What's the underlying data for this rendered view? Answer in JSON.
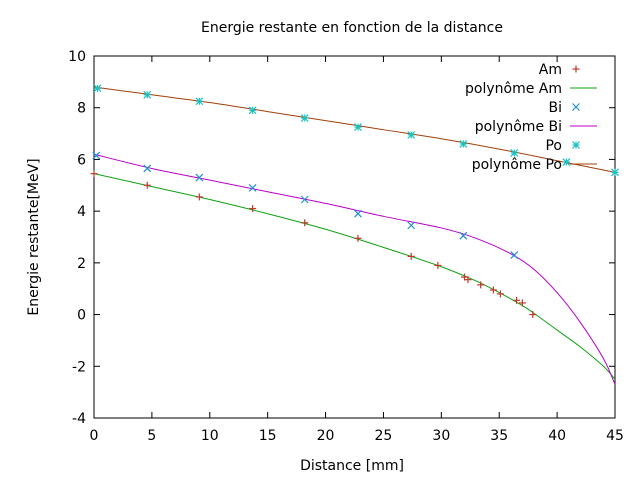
{
  "chart_data": {
    "type": "scatter",
    "title": "Energie restante en fonction de la distance",
    "xlabel": "Distance [mm]",
    "ylabel": "Energie restante[MeV]",
    "xlim": [
      0,
      45
    ],
    "ylim": [
      -4,
      10
    ],
    "xticks": [
      "0",
      "5",
      "10",
      "15",
      "20",
      "25",
      "30",
      "35",
      "40",
      "45"
    ],
    "yticks": [
      "-4",
      "-2",
      "0",
      "2",
      "4",
      "6",
      "8",
      "10"
    ],
    "grid": false,
    "legend_position": "top-right",
    "series": [
      {
        "name": "Am",
        "kind": "points",
        "marker": "plus",
        "color": "#c0392b",
        "points": [
          [
            0,
            5.45
          ],
          [
            4.6,
            5.0
          ],
          [
            9.1,
            4.55
          ],
          [
            13.7,
            4.1
          ],
          [
            18.2,
            3.55
          ],
          [
            22.8,
            2.95
          ],
          [
            27.4,
            2.25
          ],
          [
            29.7,
            1.9
          ],
          [
            32.0,
            1.45
          ],
          [
            32.3,
            1.35
          ],
          [
            33.4,
            1.15
          ],
          [
            34.5,
            0.95
          ],
          [
            35.1,
            0.8
          ],
          [
            36.5,
            0.55
          ],
          [
            37.0,
            0.45
          ],
          [
            37.9,
            0.0
          ]
        ]
      },
      {
        "name": "polynôme Am",
        "kind": "line",
        "color": "#11a011",
        "points": [
          [
            0,
            5.45
          ],
          [
            5,
            4.95
          ],
          [
            10,
            4.45
          ],
          [
            15,
            3.9
          ],
          [
            20,
            3.3
          ],
          [
            25,
            2.6
          ],
          [
            30,
            1.85
          ],
          [
            33,
            1.3
          ],
          [
            35,
            0.85
          ],
          [
            37,
            0.35
          ],
          [
            38,
            0.05
          ],
          [
            40,
            -0.6
          ],
          [
            42,
            -1.25
          ],
          [
            44,
            -2.0
          ],
          [
            45,
            -2.5
          ]
        ]
      },
      {
        "name": "Bi",
        "kind": "points",
        "marker": "cross",
        "color": "#1f8fd6",
        "points": [
          [
            0.2,
            6.15
          ],
          [
            4.6,
            5.65
          ],
          [
            9.1,
            5.3
          ],
          [
            13.7,
            4.9
          ],
          [
            18.2,
            4.45
          ],
          [
            22.8,
            3.9
          ],
          [
            27.4,
            3.45
          ],
          [
            31.9,
            3.05
          ],
          [
            36.3,
            2.3
          ]
        ]
      },
      {
        "name": "polynôme Bi",
        "kind": "line",
        "color": "#b800c8",
        "points": [
          [
            0,
            6.2
          ],
          [
            5,
            5.65
          ],
          [
            10,
            5.2
          ],
          [
            15,
            4.75
          ],
          [
            20,
            4.3
          ],
          [
            25,
            3.8
          ],
          [
            30,
            3.35
          ],
          [
            33,
            2.95
          ],
          [
            36,
            2.35
          ],
          [
            38,
            1.75
          ],
          [
            40,
            0.85
          ],
          [
            42,
            -0.3
          ],
          [
            44,
            -1.7
          ],
          [
            45,
            -2.7
          ]
        ]
      },
      {
        "name": "Po",
        "kind": "points",
        "marker": "star",
        "color": "#19c1c1",
        "points": [
          [
            0.3,
            8.75
          ],
          [
            4.6,
            8.5
          ],
          [
            9.1,
            8.25
          ],
          [
            13.7,
            7.9
          ],
          [
            18.2,
            7.6
          ],
          [
            22.8,
            7.25
          ],
          [
            27.4,
            6.95
          ],
          [
            31.9,
            6.6
          ],
          [
            36.3,
            6.25
          ],
          [
            40.8,
            5.9
          ],
          [
            45,
            5.5
          ]
        ]
      },
      {
        "name": "polynôme Po",
        "kind": "line",
        "color": "#a0400a",
        "points": [
          [
            0,
            8.8
          ],
          [
            5,
            8.5
          ],
          [
            10,
            8.2
          ],
          [
            15,
            7.85
          ],
          [
            20,
            7.5
          ],
          [
            25,
            7.15
          ],
          [
            30,
            6.8
          ],
          [
            35,
            6.4
          ],
          [
            40,
            5.95
          ],
          [
            45,
            5.5
          ]
        ]
      }
    ]
  }
}
